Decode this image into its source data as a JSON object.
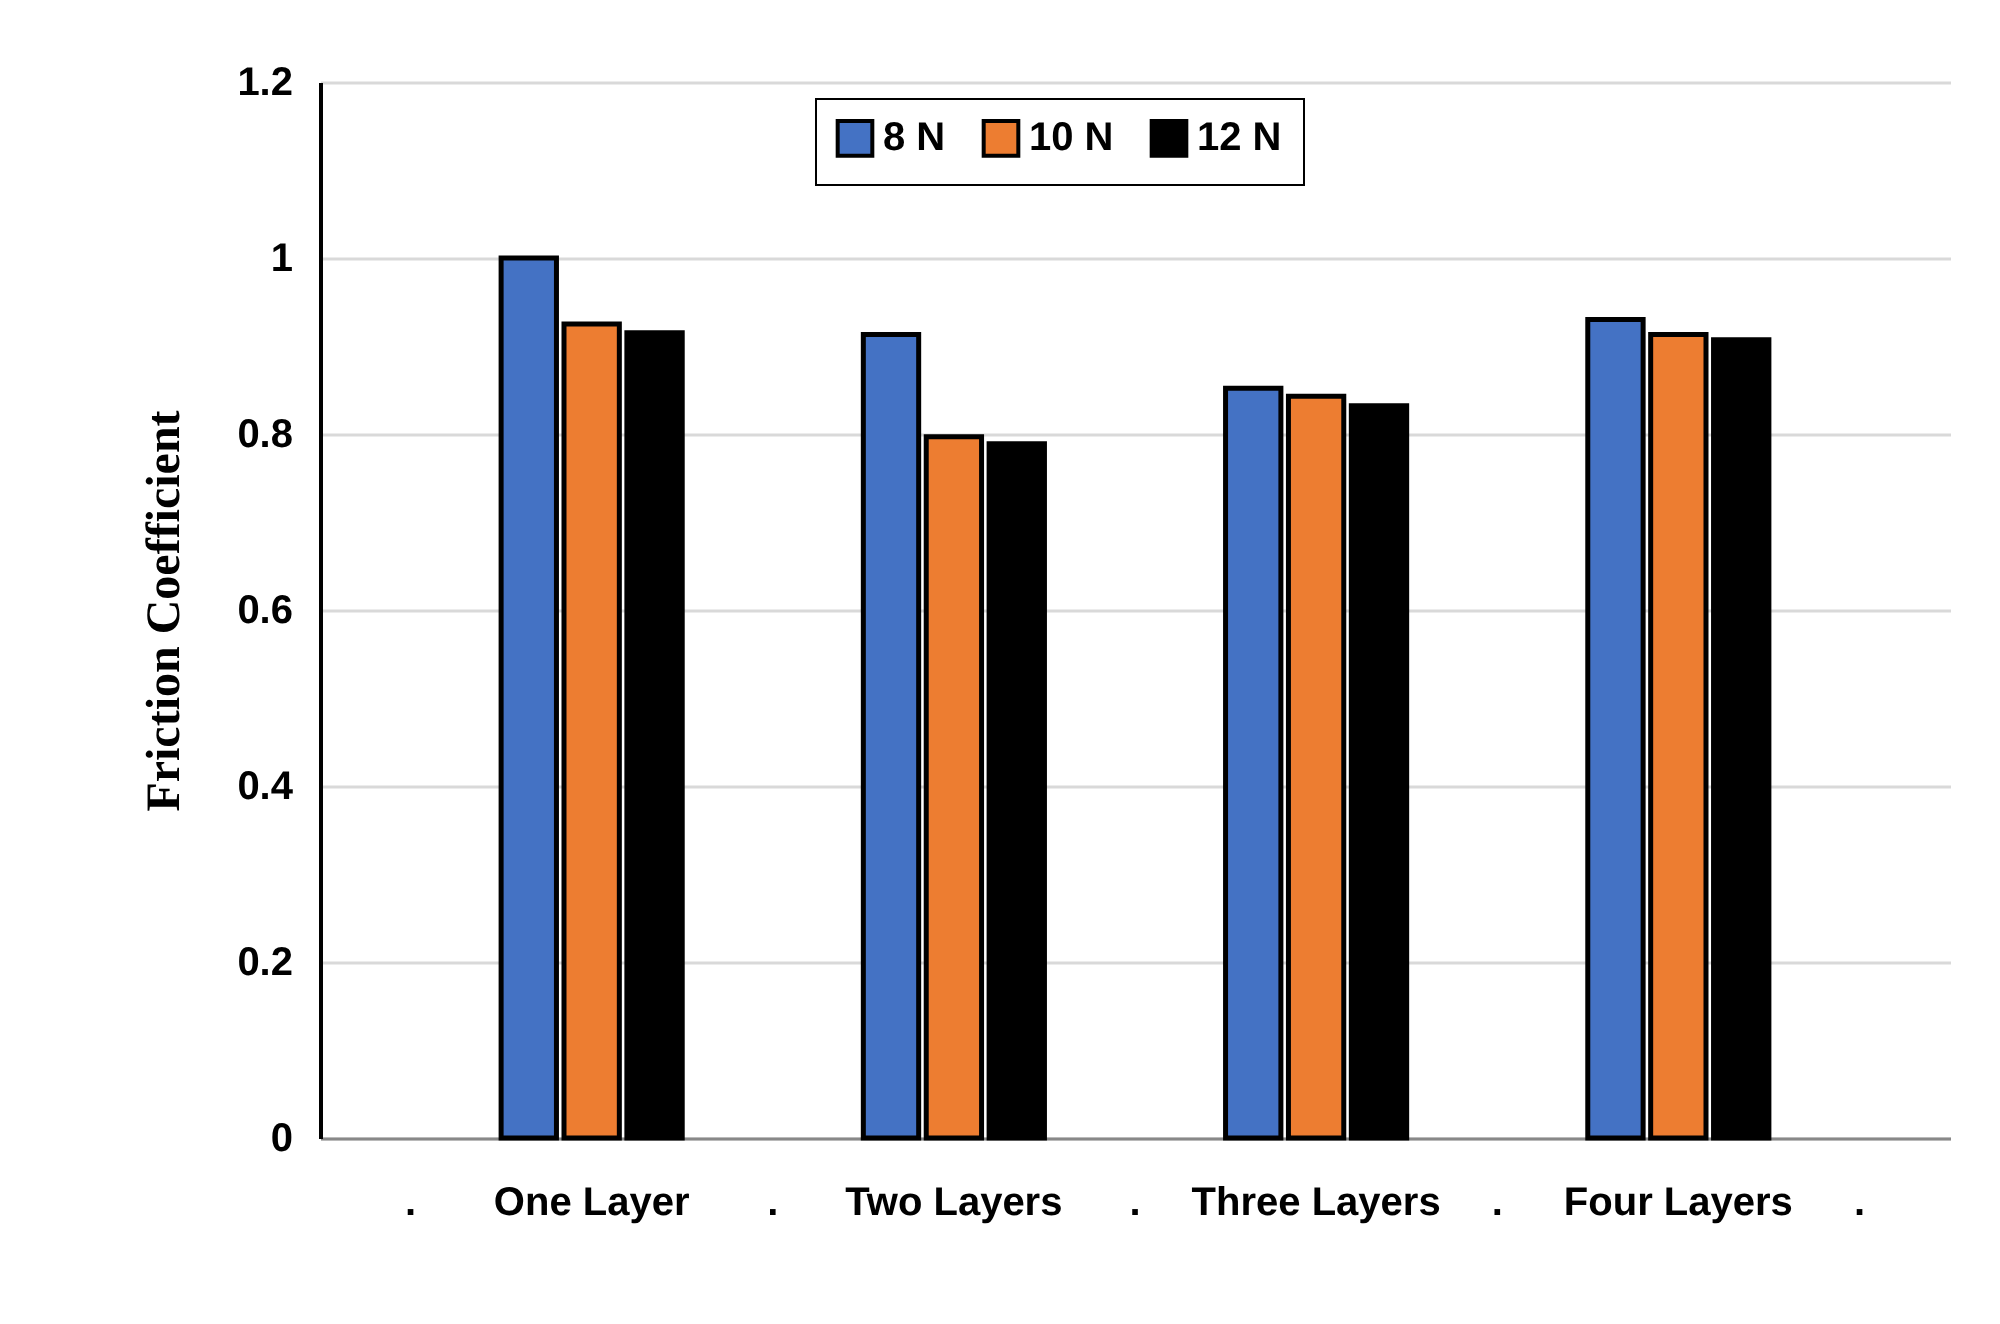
{
  "chart_data": {
    "type": "bar",
    "ylabel": "Friction Coefficient",
    "categories": [
      ".",
      "One Layer",
      ".",
      "Two Layers",
      ".",
      "Three Layers",
      ".",
      "Four Layers",
      "."
    ],
    "series": [
      {
        "name": "8 N",
        "color": "#4472c4",
        "values": [
          null,
          1.0,
          null,
          0.913,
          null,
          0.852,
          null,
          0.93,
          null
        ]
      },
      {
        "name": "10 N",
        "color": "#ed7d31",
        "values": [
          null,
          0.925,
          null,
          0.797,
          null,
          0.843,
          null,
          0.913,
          null
        ]
      },
      {
        "name": "12 N",
        "color": "#000000",
        "values": [
          null,
          0.915,
          null,
          0.789,
          null,
          0.832,
          null,
          0.907,
          null
        ]
      }
    ],
    "ylim": [
      0,
      1.2
    ],
    "yticks": [
      0,
      0.2,
      0.4,
      0.6,
      0.8,
      1,
      1.2
    ],
    "grid": "y",
    "legend": "top"
  }
}
